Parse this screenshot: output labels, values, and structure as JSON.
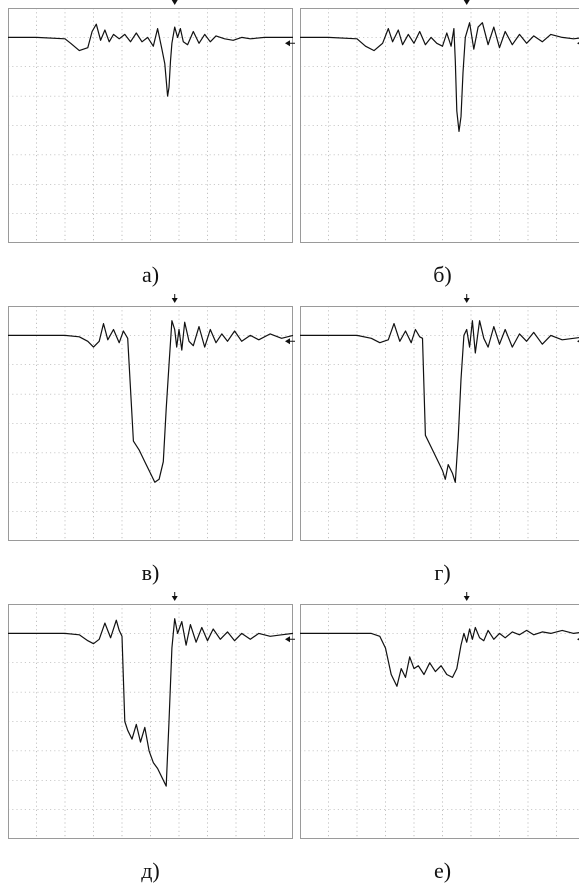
{
  "colors": {
    "trace": "#111111",
    "grid": "#9a9a9a",
    "background": "#ffffff"
  },
  "chart_data": [
    {
      "type": "line",
      "panel_label": "а)",
      "grid": true,
      "xlim": [
        0,
        10
      ],
      "ylim": [
        0,
        8
      ],
      "x": [
        0,
        1,
        2,
        2.2,
        2.5,
        2.8,
        2.95,
        3.1,
        3.25,
        3.4,
        3.55,
        3.7,
        3.9,
        4.1,
        4.3,
        4.5,
        4.7,
        4.9,
        5.1,
        5.25,
        5.4,
        5.5,
        5.6,
        5.65,
        5.7,
        5.75,
        5.85,
        5.95,
        6.05,
        6.15,
        6.3,
        6.5,
        6.7,
        6.9,
        7.1,
        7.3,
        7.6,
        7.9,
        8.2,
        8.5,
        9,
        10
      ],
      "values": [
        7.0,
        7.0,
        6.95,
        6.8,
        6.55,
        6.65,
        7.2,
        7.45,
        6.9,
        7.25,
        6.85,
        7.1,
        6.95,
        7.1,
        6.85,
        7.15,
        6.85,
        7.0,
        6.7,
        7.3,
        6.6,
        6.1,
        5.0,
        5.3,
        6.2,
        6.8,
        7.35,
        7.0,
        7.3,
        6.85,
        6.75,
        7.2,
        6.8,
        7.1,
        6.85,
        7.05,
        6.95,
        6.9,
        7.0,
        6.95,
        7.0,
        7.0
      ],
      "trigger_x": 5.85,
      "trigger_y": 6.8
    },
    {
      "type": "line",
      "panel_label": "б)",
      "grid": true,
      "xlim": [
        0,
        10
      ],
      "ylim": [
        0,
        8
      ],
      "x": [
        0,
        1,
        2,
        2.3,
        2.6,
        2.9,
        3.1,
        3.25,
        3.45,
        3.6,
        3.8,
        4.0,
        4.2,
        4.4,
        4.6,
        4.8,
        5.0,
        5.15,
        5.3,
        5.4,
        5.45,
        5.5,
        5.58,
        5.65,
        5.72,
        5.8,
        5.95,
        6.1,
        6.25,
        6.4,
        6.6,
        6.8,
        7.0,
        7.2,
        7.45,
        7.7,
        7.95,
        8.2,
        8.5,
        8.8,
        9.2,
        9.6,
        10
      ],
      "values": [
        7.0,
        7.0,
        6.95,
        6.7,
        6.55,
        6.8,
        7.3,
        6.85,
        7.25,
        6.75,
        7.1,
        6.8,
        7.2,
        6.75,
        7.0,
        6.8,
        6.7,
        7.15,
        6.7,
        7.3,
        6.2,
        4.5,
        3.8,
        4.3,
        5.8,
        7.0,
        7.5,
        6.6,
        7.35,
        7.5,
        6.75,
        7.35,
        6.65,
        7.2,
        6.75,
        7.1,
        6.8,
        7.05,
        6.85,
        7.1,
        7.0,
        6.95,
        7.0
      ],
      "trigger_x": 5.85,
      "trigger_y": 6.8
    },
    {
      "type": "line",
      "panel_label": "в)",
      "grid": true,
      "xlim": [
        0,
        10
      ],
      "ylim": [
        0,
        8
      ],
      "x": [
        0,
        1,
        2,
        2.5,
        2.8,
        3.0,
        3.2,
        3.35,
        3.5,
        3.7,
        3.9,
        4.05,
        4.2,
        4.4,
        4.6,
        4.8,
        5.0,
        5.15,
        5.3,
        5.45,
        5.55,
        5.65,
        5.75,
        5.85,
        5.92,
        6.0,
        6.1,
        6.2,
        6.35,
        6.5,
        6.7,
        6.9,
        7.1,
        7.3,
        7.5,
        7.7,
        7.95,
        8.2,
        8.5,
        8.8,
        9.2,
        9.6,
        10
      ],
      "values": [
        7.0,
        7.0,
        7.0,
        6.95,
        6.8,
        6.6,
        6.8,
        7.4,
        6.85,
        7.2,
        6.75,
        7.15,
        6.9,
        3.4,
        3.1,
        2.7,
        2.3,
        2.0,
        2.1,
        2.7,
        4.5,
        6.0,
        7.5,
        7.2,
        6.6,
        7.2,
        6.5,
        7.45,
        6.8,
        6.65,
        7.3,
        6.6,
        7.2,
        6.75,
        7.05,
        6.8,
        7.15,
        6.8,
        7.0,
        6.85,
        7.05,
        6.9,
        7.0
      ],
      "trigger_x": 5.85,
      "trigger_y": 6.8
    },
    {
      "type": "line",
      "panel_label": "г)",
      "grid": true,
      "xlim": [
        0,
        10
      ],
      "ylim": [
        0,
        8
      ],
      "x": [
        0,
        1,
        2,
        2.5,
        2.8,
        3.1,
        3.3,
        3.5,
        3.7,
        3.9,
        4.05,
        4.2,
        4.3,
        4.4,
        4.6,
        4.8,
        5.0,
        5.1,
        5.2,
        5.35,
        5.45,
        5.55,
        5.65,
        5.75,
        5.85,
        5.95,
        6.05,
        6.15,
        6.3,
        6.45,
        6.6,
        6.8,
        7.0,
        7.2,
        7.45,
        7.7,
        7.95,
        8.2,
        8.5,
        8.8,
        9.2,
        9.6,
        10
      ],
      "values": [
        7.0,
        7.0,
        7.0,
        6.9,
        6.75,
        6.85,
        7.4,
        6.8,
        7.15,
        6.75,
        7.2,
        6.95,
        6.9,
        3.6,
        3.2,
        2.8,
        2.4,
        2.1,
        2.6,
        2.3,
        2.0,
        3.5,
        5.5,
        7.0,
        7.2,
        6.6,
        7.5,
        6.4,
        7.5,
        6.9,
        6.6,
        7.3,
        6.7,
        7.2,
        6.6,
        7.05,
        6.8,
        7.1,
        6.7,
        7.0,
        6.85,
        6.9,
        6.95
      ],
      "trigger_x": 5.85,
      "trigger_y": 6.8
    },
    {
      "type": "line",
      "panel_label": "д)",
      "grid": true,
      "xlim": [
        0,
        10
      ],
      "ylim": [
        0,
        8
      ],
      "x": [
        0,
        1,
        2,
        2.5,
        2.8,
        3.0,
        3.2,
        3.4,
        3.6,
        3.8,
        3.9,
        4.0,
        4.1,
        4.2,
        4.35,
        4.5,
        4.65,
        4.8,
        4.95,
        5.1,
        5.25,
        5.4,
        5.55,
        5.65,
        5.75,
        5.85,
        5.95,
        6.1,
        6.25,
        6.4,
        6.6,
        6.8,
        7.0,
        7.2,
        7.45,
        7.7,
        7.95,
        8.2,
        8.5,
        8.8,
        9.2,
        9.6,
        10
      ],
      "values": [
        7.0,
        7.0,
        7.0,
        6.95,
        6.75,
        6.65,
        6.8,
        7.35,
        6.85,
        7.45,
        7.1,
        6.9,
        4.0,
        3.7,
        3.4,
        3.9,
        3.3,
        3.8,
        3.0,
        2.6,
        2.4,
        2.1,
        1.8,
        4.0,
        6.5,
        7.5,
        7.0,
        7.4,
        6.6,
        7.3,
        6.7,
        7.2,
        6.75,
        7.15,
        6.8,
        7.05,
        6.75,
        7.0,
        6.8,
        7.0,
        6.9,
        6.95,
        7.0
      ],
      "trigger_x": 5.85,
      "trigger_y": 6.8
    },
    {
      "type": "line",
      "panel_label": "е)",
      "grid": true,
      "xlim": [
        0,
        10
      ],
      "ylim": [
        0,
        8
      ],
      "x": [
        0,
        1,
        2,
        2.5,
        2.8,
        3.0,
        3.2,
        3.4,
        3.55,
        3.7,
        3.85,
        4.0,
        4.15,
        4.35,
        4.55,
        4.75,
        4.95,
        5.15,
        5.35,
        5.5,
        5.65,
        5.75,
        5.85,
        5.95,
        6.05,
        6.15,
        6.3,
        6.45,
        6.6,
        6.8,
        7.0,
        7.2,
        7.45,
        7.7,
        7.95,
        8.2,
        8.5,
        8.8,
        9.2,
        9.6,
        10
      ],
      "values": [
        7.0,
        7.0,
        7.0,
        7.0,
        6.9,
        6.5,
        5.6,
        5.2,
        5.8,
        5.5,
        6.2,
        5.8,
        5.9,
        5.6,
        6.0,
        5.7,
        5.9,
        5.6,
        5.5,
        5.8,
        6.6,
        7.0,
        6.7,
        7.15,
        6.8,
        7.2,
        6.85,
        6.75,
        7.1,
        6.8,
        7.0,
        6.85,
        7.05,
        6.95,
        7.1,
        6.95,
        7.05,
        7.0,
        7.1,
        7.0,
        7.05
      ],
      "trigger_x": 5.85,
      "trigger_y": 6.8
    }
  ]
}
